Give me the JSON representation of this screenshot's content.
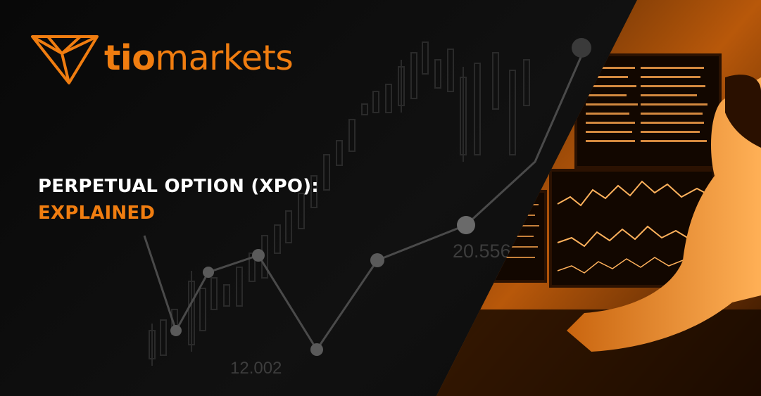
{
  "brand": {
    "logo_icon": "tio-logo-mark-icon",
    "name_part1": "tio",
    "name_part2": "markets",
    "accent_color": "#f07d10"
  },
  "headline": {
    "line1": "PERPETUAL OPTION (XPO):",
    "line2": "EXPLAINED"
  },
  "background_chart_labels": {
    "value_upper": "20.556",
    "value_lower": "12.002"
  },
  "colors": {
    "background": "#0a0a0a",
    "headline_primary": "#ffffff",
    "headline_accent": "#f07d10",
    "photo_tint": "#e07a12"
  }
}
